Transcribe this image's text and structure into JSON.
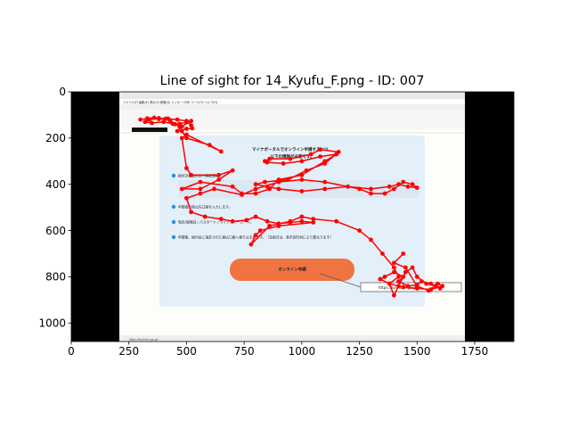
{
  "chart_data": {
    "type": "scatter",
    "title": "Line of sight for 14_Kyufu_F.png - ID: 007",
    "xlabel": "",
    "ylabel": "",
    "xlim": [
      0,
      1920
    ],
    "ylim": [
      1080,
      0
    ],
    "x_ticks": [
      0,
      250,
      500,
      750,
      1000,
      1250,
      1500,
      1750
    ],
    "y_ticks": [
      0,
      200,
      400,
      600,
      800,
      1000
    ],
    "grid": false,
    "legend": "none",
    "series": [
      {
        "color": "#ff0000",
        "marker": "circle",
        "connected": true,
        "points": [
          [
            300,
            120
          ],
          [
            330,
            115
          ],
          [
            360,
            112
          ],
          [
            380,
            118
          ],
          [
            410,
            116
          ],
          [
            430,
            128
          ],
          [
            450,
            140
          ],
          [
            470,
            138
          ],
          [
            500,
            132
          ],
          [
            520,
            126
          ],
          [
            480,
            150
          ],
          [
            460,
            170
          ],
          [
            500,
            160
          ],
          [
            525,
            158
          ],
          [
            520,
            145
          ],
          [
            500,
            126
          ],
          [
            460,
            120
          ],
          [
            420,
            116
          ],
          [
            380,
            114
          ],
          [
            340,
            120
          ],
          [
            320,
            130
          ],
          [
            350,
            135
          ],
          [
            400,
            130
          ],
          [
            440,
            138
          ],
          [
            470,
            150
          ],
          [
            480,
            170
          ],
          [
            500,
            200
          ],
          [
            600,
            230
          ],
          [
            650,
            258
          ],
          [
            500,
            185
          ],
          [
            480,
            200
          ],
          [
            500,
            330
          ],
          [
            520,
            360
          ],
          [
            640,
            360
          ],
          [
            700,
            340
          ],
          [
            640,
            380
          ],
          [
            560,
            420
          ],
          [
            480,
            420
          ],
          [
            560,
            390
          ],
          [
            700,
            410
          ],
          [
            740,
            440
          ],
          [
            800,
            440
          ],
          [
            860,
            420
          ],
          [
            900,
            380
          ],
          [
            1000,
            360
          ],
          [
            1100,
            300
          ],
          [
            1150,
            270
          ],
          [
            1080,
            280
          ],
          [
            1000,
            300
          ],
          [
            920,
            310
          ],
          [
            850,
            305
          ],
          [
            840,
            300
          ],
          [
            860,
            290
          ],
          [
            950,
            290
          ],
          [
            1040,
            270
          ],
          [
            1080,
            250
          ],
          [
            1160,
            260
          ],
          [
            1100,
            310
          ],
          [
            1020,
            340
          ],
          [
            940,
            380
          ],
          [
            840,
            390
          ],
          [
            800,
            400
          ],
          [
            850,
            410
          ],
          [
            900,
            420
          ],
          [
            1000,
            430
          ],
          [
            1100,
            420
          ],
          [
            1200,
            410
          ],
          [
            1300,
            420
          ],
          [
            1380,
            410
          ],
          [
            1420,
            400
          ],
          [
            1460,
            410
          ],
          [
            1500,
            415
          ],
          [
            1480,
            400
          ],
          [
            1440,
            390
          ],
          [
            1400,
            420
          ],
          [
            1360,
            440
          ],
          [
            1300,
            440
          ],
          [
            1250,
            420
          ],
          [
            1100,
            390
          ],
          [
            1000,
            380
          ],
          [
            900,
            390
          ],
          [
            800,
            420
          ],
          [
            740,
            445
          ],
          [
            620,
            420
          ],
          [
            560,
            440
          ],
          [
            500,
            460
          ],
          [
            520,
            520
          ],
          [
            580,
            540
          ],
          [
            650,
            550
          ],
          [
            700,
            560
          ],
          [
            760,
            555
          ],
          [
            800,
            540
          ],
          [
            850,
            560
          ],
          [
            900,
            570
          ],
          [
            950,
            565
          ],
          [
            1000,
            560
          ],
          [
            1050,
            565
          ],
          [
            900,
            580
          ],
          [
            820,
            600
          ],
          [
            800,
            620
          ],
          [
            780,
            660
          ],
          [
            860,
            580
          ],
          [
            950,
            560
          ],
          [
            1000,
            540
          ],
          [
            1050,
            550
          ],
          [
            1150,
            560
          ],
          [
            1250,
            600
          ],
          [
            1300,
            640
          ],
          [
            1350,
            700
          ],
          [
            1400,
            760
          ],
          [
            1420,
            800
          ],
          [
            1380,
            830
          ],
          [
            1400,
            880
          ],
          [
            1420,
            840
          ],
          [
            1450,
            780
          ],
          [
            1480,
            760
          ],
          [
            1500,
            800
          ],
          [
            1540,
            830
          ],
          [
            1580,
            840
          ],
          [
            1600,
            850
          ],
          [
            1560,
            830
          ],
          [
            1520,
            820
          ],
          [
            1500,
            835
          ],
          [
            1460,
            840
          ],
          [
            1420,
            820
          ],
          [
            1440,
            800
          ],
          [
            1400,
            780
          ],
          [
            1360,
            800
          ],
          [
            1340,
            810
          ],
          [
            1380,
            830
          ],
          [
            1440,
            845
          ],
          [
            1500,
            850
          ],
          [
            1560,
            855
          ],
          [
            1610,
            840
          ],
          [
            1590,
            830
          ],
          [
            1550,
            860
          ],
          [
            1500,
            840
          ],
          [
            1450,
            760
          ],
          [
            1400,
            740
          ],
          [
            1440,
            700
          ]
        ]
      }
    ]
  },
  "screenshot": {
    "menu_bar": "ファイル(F)  編集(E)  表示(V)  移動(G)  メッセージ(M)  ツール(T)  ヘルプ(H)",
    "heading_line1": "マイナポータルでオンライン申請するには、",
    "heading_line2": "以下の情報が必要です。",
    "steps": [
      "給付対象者の本人確認情報",
      "申請者の振込先口座を入力します。",
      "免許/保険証 / パスポート / マイナンバーカード。",
      "申請後、給付金に指定された振込口座へ振り込まれます。（支給日は、各市区町村により異なります）"
    ],
    "apply_button": "オンライン申請",
    "url_box": "https://kyufukin.go.jp/",
    "status_bar": "https://kyufukin.go.jp/"
  }
}
